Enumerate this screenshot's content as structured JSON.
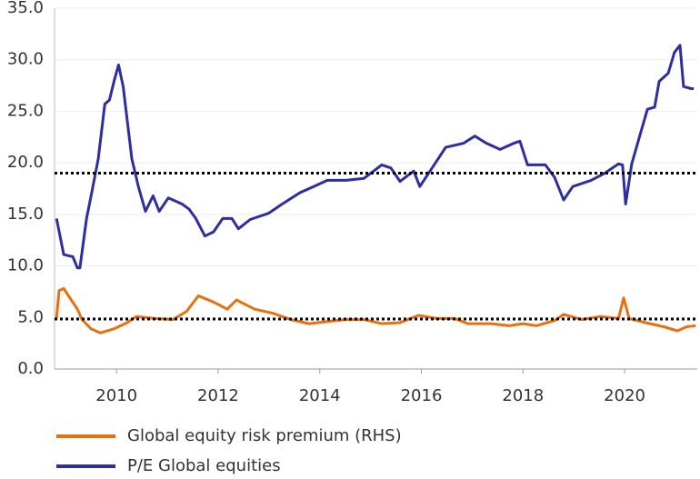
{
  "chart_data": {
    "type": "line",
    "xlim": [
      2008.78,
      2021.43
    ],
    "xticks": [
      2010,
      2012,
      2014,
      2016,
      2018,
      2020
    ],
    "ylim": [
      0,
      35
    ],
    "yticks": [
      {
        "value": 0,
        "label": "0.0"
      },
      {
        "value": 5,
        "label": "5.0"
      },
      {
        "value": 10,
        "label": "10.0"
      },
      {
        "value": 15,
        "label": "15.0"
      },
      {
        "value": 20,
        "label": "20.0"
      },
      {
        "value": 25,
        "label": "25.0"
      },
      {
        "value": 30,
        "label": "30.0"
      },
      {
        "value": 35,
        "label": "35.0"
      }
    ],
    "grid": true,
    "hlines": [
      19.0,
      4.85
    ],
    "series": [
      {
        "name": "Global equity risk premium (RHS)",
        "color": "#e8700f",
        "x": [
          2008.82,
          2008.87,
          2008.96,
          2009.11,
          2009.23,
          2009.32,
          2009.5,
          2009.68,
          2009.95,
          2010.21,
          2010.39,
          2010.75,
          2011.11,
          2011.38,
          2011.61,
          2011.91,
          2012.18,
          2012.36,
          2012.72,
          2013.08,
          2013.43,
          2013.79,
          2014.15,
          2014.51,
          2014.87,
          2015.22,
          2015.58,
          2015.94,
          2016.3,
          2016.65,
          2016.92,
          2017.37,
          2017.73,
          2018.0,
          2018.26,
          2018.62,
          2018.8,
          2019.16,
          2019.52,
          2019.88,
          2019.98,
          2020.09,
          2020.41,
          2020.77,
          2021.04,
          2021.22,
          2021.4
        ],
        "values": [
          4.9,
          7.6,
          7.8,
          6.7,
          5.8,
          4.8,
          3.9,
          3.5,
          3.9,
          4.5,
          5.1,
          4.9,
          4.8,
          5.6,
          7.1,
          6.5,
          5.8,
          6.7,
          5.8,
          5.4,
          4.8,
          4.4,
          4.6,
          4.8,
          4.8,
          4.4,
          4.5,
          5.2,
          4.9,
          4.9,
          4.4,
          4.4,
          4.2,
          4.4,
          4.2,
          4.7,
          5.3,
          4.8,
          5.1,
          4.9,
          6.9,
          4.9,
          4.5,
          4.1,
          3.7,
          4.1,
          4.2
        ]
      },
      {
        "name": "P/E Global equities",
        "color": "#2e2ea0",
        "x": [
          2008.82,
          2008.96,
          2009.14,
          2009.23,
          2009.28,
          2009.41,
          2009.5,
          2009.64,
          2009.77,
          2009.86,
          2009.95,
          2010.04,
          2010.13,
          2010.3,
          2010.43,
          2010.57,
          2010.72,
          2010.84,
          2011.02,
          2011.29,
          2011.43,
          2011.56,
          2011.74,
          2011.91,
          2012.09,
          2012.27,
          2012.4,
          2012.63,
          2012.99,
          2013.26,
          2013.61,
          2013.88,
          2014.15,
          2014.51,
          2014.87,
          2015.22,
          2015.4,
          2015.58,
          2015.85,
          2015.97,
          2016.21,
          2016.48,
          2016.83,
          2017.05,
          2017.28,
          2017.55,
          2017.82,
          2017.94,
          2018.09,
          2018.44,
          2018.62,
          2018.8,
          2018.98,
          2019.34,
          2019.61,
          2019.88,
          2019.96,
          2020.02,
          2020.14,
          2020.32,
          2020.45,
          2020.59,
          2020.68,
          2020.86,
          2020.98,
          2021.09,
          2021.16,
          2021.31,
          2021.36
        ],
        "values": [
          14.6,
          11.1,
          10.9,
          9.8,
          9.8,
          14.6,
          16.8,
          20.4,
          25.7,
          26.1,
          27.9,
          29.5,
          27.4,
          20.4,
          17.7,
          15.3,
          16.8,
          15.3,
          16.6,
          16.0,
          15.5,
          14.6,
          12.9,
          13.3,
          14.6,
          14.6,
          13.6,
          14.5,
          15.1,
          16.0,
          17.1,
          17.7,
          18.3,
          18.3,
          18.5,
          19.8,
          19.5,
          18.2,
          19.2,
          17.7,
          19.5,
          21.5,
          21.9,
          22.6,
          21.9,
          21.3,
          21.9,
          22.1,
          19.8,
          19.8,
          18.6,
          16.4,
          17.7,
          18.3,
          19.0,
          19.9,
          19.8,
          16.0,
          19.9,
          23.0,
          25.2,
          25.4,
          27.9,
          28.7,
          30.7,
          31.4,
          27.4,
          27.2,
          27.2
        ]
      }
    ]
  }
}
